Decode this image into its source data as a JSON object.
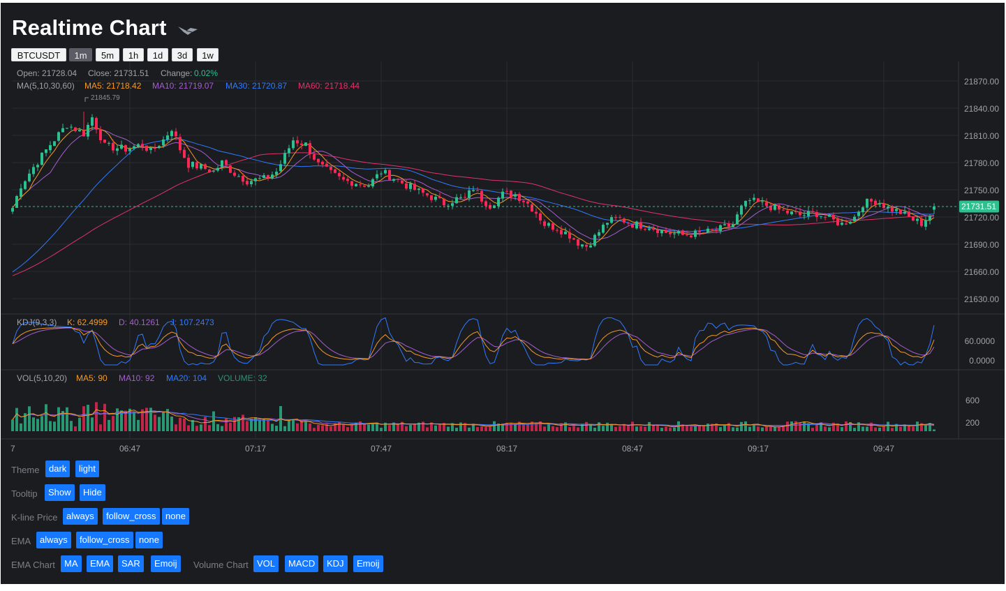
{
  "header": {
    "title": "Realtime Chart"
  },
  "toolbar": {
    "symbol": "BTCUSDT",
    "periods": [
      "1m",
      "5m",
      "1h",
      "1d",
      "3d",
      "1w"
    ],
    "active_period": "1m"
  },
  "candle_legend": {
    "open_label": "Open: 21728.04",
    "close_label": "Close: 21731.51",
    "change_label": "Change:",
    "change_value": "0.02%",
    "ma_label": "MA(5,10,30,60)",
    "ma5": "MA5: 21718.42",
    "ma10": "MA10: 21719.07",
    "ma30": "MA30: 21720.87",
    "ma60": "MA60: 21718.44"
  },
  "kdj_legend": {
    "label": "KDJ(9,3,3)",
    "k": "K: 62.4999",
    "d": "D: 40.1261",
    "j": "J: 107.2473"
  },
  "vol_legend": {
    "label": "VOL(5,10,20)",
    "ma5": "MA5: 90",
    "ma10": "MA10: 92",
    "ma20": "MA20: 104",
    "volume": "VOLUME: 32"
  },
  "price_axis": [
    "21870.00",
    "21840.00",
    "21810.00",
    "21780.00",
    "21750.00",
    "21720.00",
    "21690.00",
    "21660.00",
    "21630.00"
  ],
  "kdj_axis": [
    "60.0000",
    "0.0000"
  ],
  "vol_axis": [
    "600",
    "200"
  ],
  "time_axis": [
    "7",
    "06:47",
    "07:17",
    "07:47",
    "08:17",
    "08:47",
    "09:17",
    "09:47"
  ],
  "last_price": "21731.51",
  "high_marker": "21845.79",
  "colors": {
    "up": "#2dc08e",
    "down": "#f92855",
    "ma5": "#f59a23",
    "ma10": "#a45fcf",
    "ma30": "#2f7bff",
    "ma60": "#e1336a",
    "bg": "#1b1c20"
  },
  "controls": {
    "theme": {
      "label": "Theme",
      "options": [
        "dark",
        "light"
      ]
    },
    "tooltip": {
      "label": "Tooltip",
      "options": [
        "Show",
        "Hide"
      ]
    },
    "kline_price": {
      "label": "K-line Price",
      "options": [
        "always",
        "follow_cross",
        "none"
      ]
    },
    "ema": {
      "label": "EMA",
      "options": [
        "always",
        "follow_cross",
        "none"
      ]
    },
    "ema_chart": {
      "label": "EMA Chart",
      "options": [
        "MA",
        "EMA",
        "SAR",
        "Emoij"
      ]
    },
    "volume_chart": {
      "label": "Volume Chart",
      "options": [
        "VOL",
        "MACD",
        "KDJ",
        "Emoij"
      ]
    }
  },
  "chart_data": {
    "type": "candlestick",
    "symbol": "BTCUSDT",
    "interval": "1m",
    "price_range": [
      21615,
      21885
    ],
    "price_anchors": [
      [
        0,
        21730
      ],
      [
        2,
        21755
      ],
      [
        5,
        21775
      ],
      [
        9,
        21800
      ],
      [
        13,
        21822
      ],
      [
        17,
        21812
      ],
      [
        19,
        21830
      ],
      [
        22,
        21798
      ],
      [
        27,
        21795
      ],
      [
        31,
        21800
      ],
      [
        33,
        21792
      ],
      [
        36,
        21805
      ],
      [
        38,
        21818
      ],
      [
        40,
        21795
      ],
      [
        42,
        21778
      ],
      [
        45,
        21775
      ],
      [
        48,
        21770
      ],
      [
        50,
        21780
      ],
      [
        53,
        21768
      ],
      [
        56,
        21760
      ],
      [
        60,
        21762
      ],
      [
        63,
        21770
      ],
      [
        67,
        21805
      ],
      [
        70,
        21800
      ],
      [
        73,
        21778
      ],
      [
        76,
        21768
      ],
      [
        79,
        21760
      ],
      [
        82,
        21758
      ],
      [
        85,
        21755
      ],
      [
        88,
        21770
      ],
      [
        91,
        21763
      ],
      [
        94,
        21755
      ],
      [
        97,
        21748
      ],
      [
        100,
        21742
      ],
      [
        103,
        21735
      ],
      [
        106,
        21740
      ],
      [
        108,
        21740
      ],
      [
        110,
        21752
      ],
      [
        112,
        21740
      ],
      [
        114,
        21733
      ],
      [
        117,
        21745
      ],
      [
        120,
        21745
      ],
      [
        123,
        21735
      ],
      [
        125,
        21725
      ],
      [
        127,
        21712
      ],
      [
        130,
        21708
      ],
      [
        133,
        21700
      ],
      [
        135,
        21692
      ],
      [
        137,
        21688
      ],
      [
        139,
        21698
      ],
      [
        142,
        21715
      ],
      [
        145,
        21718
      ],
      [
        148,
        21712
      ],
      [
        152,
        21710
      ],
      [
        156,
        21703
      ],
      [
        160,
        21700
      ],
      [
        164,
        21702
      ],
      [
        168,
        21705
      ],
      [
        172,
        21712
      ],
      [
        174,
        21730
      ],
      [
        176,
        21738
      ],
      [
        180,
        21733
      ],
      [
        184,
        21726
      ],
      [
        188,
        21722
      ],
      [
        192,
        21724
      ],
      [
        195,
        21718
      ],
      [
        198,
        21712
      ],
      [
        201,
        21720
      ],
      [
        203,
        21735
      ],
      [
        206,
        21738
      ],
      [
        209,
        21730
      ],
      [
        212,
        21725
      ],
      [
        215,
        21717
      ],
      [
        217,
        21713
      ],
      [
        219,
        21722
      ],
      [
        220,
        21731.51
      ]
    ],
    "kdj": {
      "k": 62.4999,
      "d": 40.1261,
      "j": 107.2473
    },
    "volume": {
      "ma5": 90,
      "ma10": 92,
      "ma20": 104,
      "last": 32
    }
  }
}
